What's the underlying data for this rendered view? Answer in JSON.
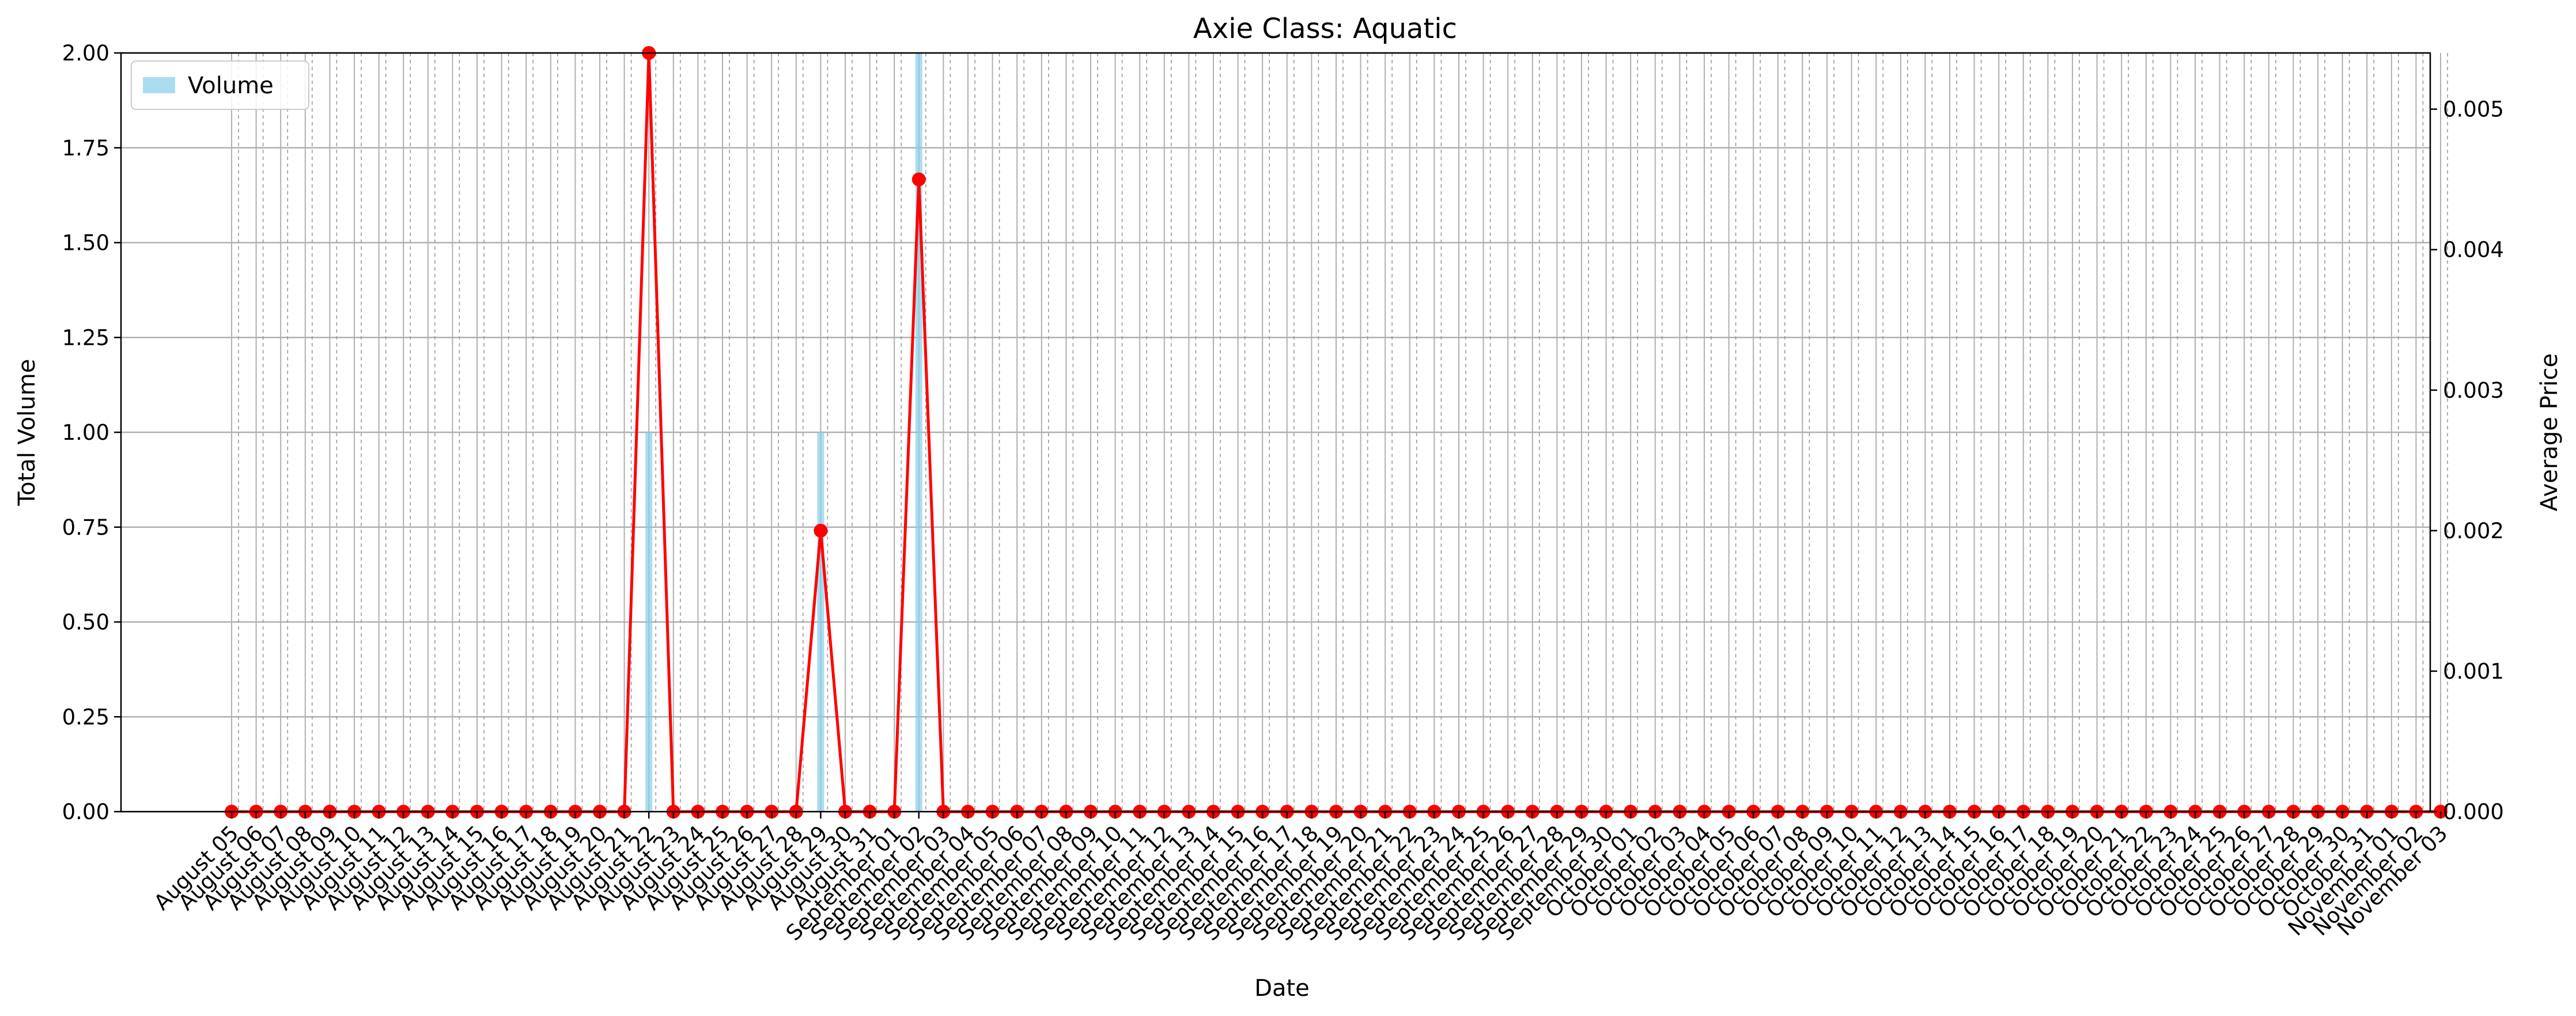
{
  "chart_data": {
    "type": "bar+line",
    "title": "Axie Class: Aquatic",
    "xlabel": "Date",
    "ylabel_left": "Total Volume",
    "ylabel_right": "Average Price",
    "ylim_left": [
      0,
      2.0
    ],
    "ylim_right": [
      0,
      0.0054
    ],
    "yticks_left": [
      "0.00",
      "0.25",
      "0.50",
      "0.75",
      "1.00",
      "1.25",
      "1.50",
      "1.75",
      "2.00"
    ],
    "yticks_right": [
      "0.000",
      "0.001",
      "0.002",
      "0.003",
      "0.004",
      "0.005"
    ],
    "grid": true,
    "legend": {
      "position": "top-left",
      "entries": [
        "Volume"
      ]
    },
    "dates": [
      "August 05",
      "August 06",
      "August 07",
      "August 08",
      "August 09",
      "August 10",
      "August 11",
      "August 12",
      "August 13",
      "August 14",
      "August 15",
      "August 16",
      "August 17",
      "August 18",
      "August 19",
      "August 20",
      "August 21",
      "August 22",
      "August 23",
      "August 24",
      "August 25",
      "August 26",
      "August 27",
      "August 28",
      "August 29",
      "August 30",
      "August 31",
      "September 01",
      "September 02",
      "September 03",
      "September 04",
      "September 05",
      "September 06",
      "September 07",
      "September 08",
      "September 09",
      "September 10",
      "September 11",
      "September 12",
      "September 13",
      "September 14",
      "September 15",
      "September 16",
      "September 17",
      "September 18",
      "September 19",
      "September 20",
      "September 21",
      "September 22",
      "September 23",
      "September 24",
      "September 25",
      "September 26",
      "September 27",
      "September 28",
      "September 29",
      "September 30",
      "October 01",
      "October 02",
      "October 03",
      "October 04",
      "October 05",
      "October 06",
      "October 07",
      "October 08",
      "October 09",
      "October 10",
      "October 11",
      "October 12",
      "October 13",
      "October 14",
      "October 15",
      "October 16",
      "October 17",
      "October 18",
      "October 19",
      "October 20",
      "October 21",
      "October 22",
      "October 23",
      "October 24",
      "October 25",
      "October 26",
      "October 27",
      "October 28",
      "October 29",
      "October 30",
      "October 31",
      "November 01",
      "November 02",
      "November 03"
    ],
    "series": [
      {
        "name": "Volume",
        "kind": "bar",
        "axis": "left",
        "color": "#87ceeb",
        "values": [
          0,
          0,
          0,
          0,
          0,
          0,
          0,
          0,
          0,
          0,
          0,
          0,
          0,
          0,
          0,
          0,
          0,
          1,
          0,
          0,
          0,
          0,
          0,
          0,
          1,
          0,
          0,
          0,
          2,
          0,
          0,
          0,
          0,
          0,
          0,
          0,
          0,
          0,
          0,
          0,
          0,
          0,
          0,
          0,
          0,
          0,
          0,
          0,
          0,
          0,
          0,
          0,
          0,
          0,
          0,
          0,
          0,
          0,
          0,
          0,
          0,
          0,
          0,
          0,
          0,
          0,
          0,
          0,
          0,
          0,
          0,
          0,
          0,
          0,
          0,
          0,
          0,
          0,
          0,
          0,
          0,
          0,
          0,
          0,
          0,
          0,
          0,
          0,
          0,
          0,
          0
        ]
      },
      {
        "kind": "line",
        "axis": "right",
        "color": "#ff0000",
        "values": [
          0,
          0,
          0,
          0,
          0,
          0,
          0,
          0,
          0,
          0,
          0,
          0,
          0,
          0,
          0,
          0,
          0,
          0.0054,
          0,
          0,
          0,
          0,
          0,
          0,
          0.002,
          0,
          0,
          0,
          0.0045,
          0,
          0,
          0,
          0,
          0,
          0,
          0,
          0,
          0,
          0,
          0,
          0,
          0,
          0,
          0,
          0,
          0,
          0,
          0,
          0,
          0,
          0,
          0,
          0,
          0,
          0,
          0,
          0,
          0,
          0,
          0,
          0,
          0,
          0,
          0,
          0,
          0,
          0,
          0,
          0,
          0,
          0,
          0,
          0,
          0,
          0,
          0,
          0,
          0,
          0,
          0,
          0,
          0,
          0,
          0,
          0,
          0,
          0,
          0,
          0,
          0,
          0
        ]
      }
    ]
  },
  "tick_labels": [
    "August 05",
    "August 06",
    "August 07",
    "August 08",
    "August 09",
    "August 10",
    "August 11",
    "August 12",
    "August 13",
    "August 14",
    "August 15",
    "August 16",
    "August 17",
    "August 18",
    "August 19",
    "August 20",
    "August 21",
    "August 22",
    "August 23",
    "August 24",
    "August 25",
    "August 26",
    "August 27",
    "August 28",
    "August 29",
    "August 30",
    "August 31",
    "September 01",
    "September 02",
    "September 03",
    "September 04",
    "September 05",
    "September 06",
    "September 07",
    "September 08",
    "September 09",
    "September 10",
    "September 11",
    "September 12",
    "September 13",
    "September 14",
    "September 15",
    "September 16",
    "September 17",
    "September 18",
    "September 19",
    "September 20",
    "September 21",
    "September 22",
    "September 23",
    "September 24",
    "September 25",
    "September 26",
    "September 27",
    "September 28",
    "September 29",
    "September 30",
    "October 01",
    "October 02",
    "October 03",
    "October 04",
    "October 05",
    "October 06",
    "October 07",
    "October 08",
    "October 09",
    "October 10",
    "October 11",
    "October 12",
    "October 13",
    "October 14",
    "October 15",
    "October 16",
    "October 17",
    "October 18",
    "October 19",
    "October 20",
    "October 21",
    "October 22",
    "October 23",
    "October 24",
    "October 25",
    "October 26",
    "October 27",
    "October 28",
    "October 29",
    "October 30",
    "October 31",
    "November 01",
    "November 02",
    "November 03"
  ]
}
